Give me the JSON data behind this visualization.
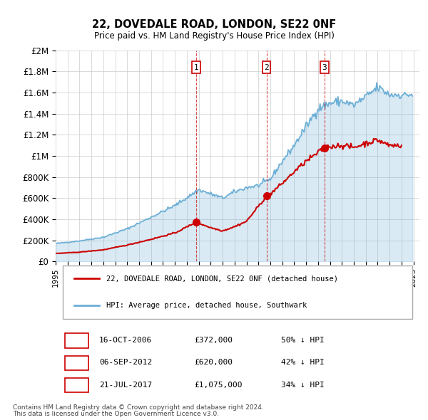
{
  "title": "22, DOVEDALE ROAD, LONDON, SE22 0NF",
  "subtitle": "Price paid vs. HM Land Registry's House Price Index (HPI)",
  "legend_line1": "22, DOVEDALE ROAD, LONDON, SE22 0NF (detached house)",
  "legend_line2": "HPI: Average price, detached house, Southwark",
  "footer1": "Contains HM Land Registry data © Crown copyright and database right 2024.",
  "footer2": "This data is licensed under the Open Government Licence v3.0.",
  "transactions": [
    {
      "label": "1",
      "date_str": "16-OCT-2006",
      "date_num": 2006.79,
      "price": 372000,
      "pct": "50% ↓ HPI"
    },
    {
      "label": "2",
      "date_str": "06-SEP-2012",
      "date_num": 2012.68,
      "price": 620000,
      "pct": "42% ↓ HPI"
    },
    {
      "label": "3",
      "date_str": "21-JUL-2017",
      "date_num": 2017.55,
      "price": 1075000,
      "pct": "34% ↓ HPI"
    }
  ],
  "hpi_color": "#6baed6",
  "price_color": "#cc0000",
  "vline_color": "#cc0000",
  "box_color": "#cc0000",
  "ylim": [
    0,
    2000000
  ],
  "yticks": [
    0,
    200000,
    400000,
    600000,
    800000,
    1000000,
    1200000,
    1400000,
    1600000,
    1800000,
    2000000
  ],
  "ytick_labels": [
    "£0",
    "£200K",
    "£400K",
    "£600K",
    "£800K",
    "£1M",
    "£1.2M",
    "£1.4M",
    "£1.6M",
    "£1.8M",
    "£2M"
  ],
  "xlim_start": 1995.0,
  "xlim_end": 2025.5,
  "xticks": [
    1995,
    1996,
    1997,
    1998,
    1999,
    2000,
    2001,
    2002,
    2003,
    2004,
    2005,
    2006,
    2007,
    2008,
    2009,
    2010,
    2011,
    2012,
    2013,
    2014,
    2015,
    2016,
    2017,
    2018,
    2019,
    2020,
    2021,
    2022,
    2023,
    2024,
    2025
  ]
}
